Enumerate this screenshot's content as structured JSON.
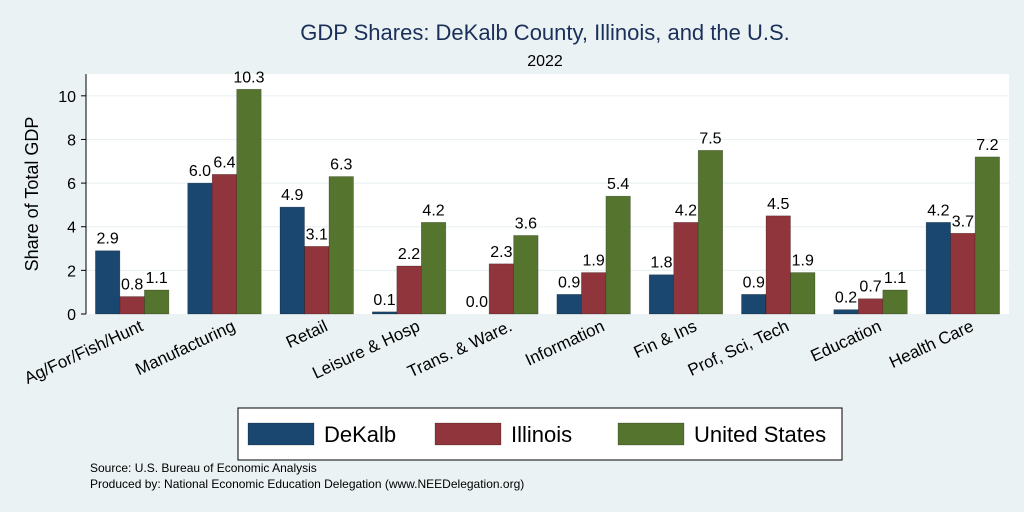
{
  "chart_data": {
    "type": "bar",
    "title": "GDP Shares: DeKalb County, Illinois, and the U.S.",
    "subtitle": "2022",
    "ylabel": "Share of Total GDP",
    "xlabel": "",
    "ylim": [
      0,
      11
    ],
    "yticks": [
      0,
      2,
      4,
      6,
      8,
      10
    ],
    "grid": true,
    "legend_position": "bottom",
    "categories": [
      "Ag/For/Fish/Hunt",
      "Manufacturing",
      "Retail",
      "Leisure & Hosp",
      "Trans. & Ware.",
      "Information",
      "Fin & Ins",
      "Prof, Sci, Tech",
      "Education",
      "Health Care"
    ],
    "series": [
      {
        "name": "DeKalb",
        "color": "#1a476f",
        "values": [
          2.9,
          6.0,
          4.9,
          0.1,
          0.0,
          0.9,
          1.8,
          0.9,
          0.2,
          4.2
        ]
      },
      {
        "name": "Illinois",
        "color": "#90353b",
        "values": [
          0.8,
          6.4,
          3.1,
          2.2,
          2.3,
          1.9,
          4.2,
          4.5,
          0.7,
          3.7
        ]
      },
      {
        "name": "United States",
        "color": "#55752f",
        "values": [
          1.1,
          10.3,
          6.3,
          4.2,
          3.6,
          5.4,
          7.5,
          1.9,
          1.1,
          7.2
        ]
      }
    ]
  },
  "footer": {
    "source": "Source: U.S. Bureau of Economic Analysis",
    "produced_by": "Produced by: National Economic Education Delegation (www.NEEDelegation.org)"
  }
}
